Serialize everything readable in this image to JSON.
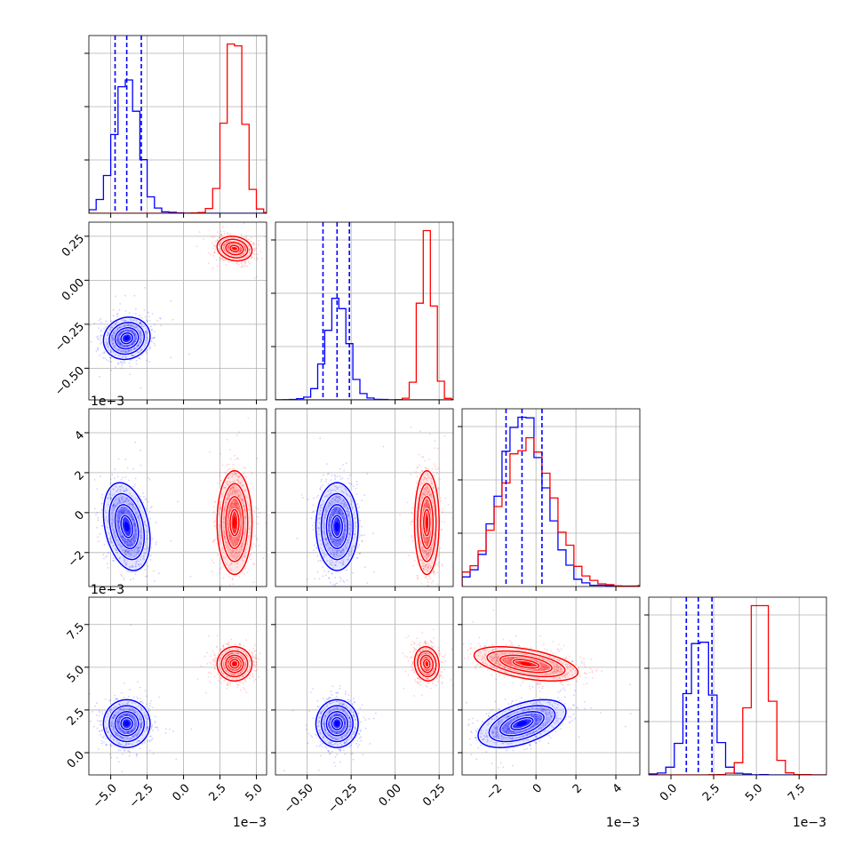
{
  "chart_data": {
    "type": "corner",
    "colors": {
      "series_a": "#0000ff",
      "series_b": "#ff0000"
    },
    "grid": true,
    "parameters": [
      {
        "range": [
          -0.0065,
          0.0057
        ],
        "ticks": [
          -0.005,
          -0.0025,
          0.0,
          0.0025,
          0.005
        ],
        "tick_labels": [
          "−5.0",
          "−2.5",
          "0.0",
          "2.5",
          "5.0"
        ],
        "offset_text": "1e−3",
        "bin_width": 0.0005
      },
      {
        "range": [
          -0.68,
          0.33
        ],
        "ticks": [
          -0.5,
          -0.25,
          0.0,
          0.25
        ],
        "tick_labels": [
          "−0.50",
          "−0.25",
          "0.00",
          "0.25"
        ],
        "offset_text": "",
        "bin_width": 0.04
      },
      {
        "range": [
          -0.0037,
          0.0052
        ],
        "ticks": [
          -0.002,
          0.0,
          0.002,
          0.004
        ],
        "tick_labels": [
          "−2",
          "0",
          "2",
          "4"
        ],
        "offset_text": "1e−3",
        "bin_width": 0.0004
      },
      {
        "range": [
          -0.0013,
          0.0091
        ],
        "ticks": [
          0.0,
          0.0025,
          0.005,
          0.0075
        ],
        "tick_labels": [
          "0.0",
          "2.5",
          "5.0",
          "7.5"
        ],
        "offset_text": "1e−3",
        "bin_width": 0.0005
      }
    ],
    "series": [
      {
        "color": "#0000ff",
        "mean": [
          -0.0039,
          -0.33,
          -0.0007,
          0.0017
        ],
        "std": [
          0.0008,
          0.06,
          0.0011,
          0.0007
        ],
        "quantiles": [
          [
            -0.0047,
            -0.0039,
            -0.0029
          ],
          [
            -0.41,
            -0.33,
            -0.26
          ],
          [
            -0.0015,
            -0.0007,
            0.0003
          ],
          [
            0.0009,
            0.0016,
            0.0024
          ]
        ]
      },
      {
        "color": "#ff0000",
        "mean": [
          0.0035,
          0.18,
          -0.0005,
          0.0052
        ],
        "std": [
          0.0006,
          0.035,
          0.0013,
          0.0005
        ],
        "quantiles": []
      }
    ],
    "correlations": {
      "1-0": [
        0.1,
        -0.15
      ],
      "2-0": [
        -0.3,
        0.0
      ],
      "2-1": [
        0.0,
        0.0
      ],
      "3-0": [
        0.0,
        0.0
      ],
      "3-1": [
        0.0,
        -0.1
      ],
      "3-2": [
        0.5,
        -0.5
      ]
    }
  }
}
